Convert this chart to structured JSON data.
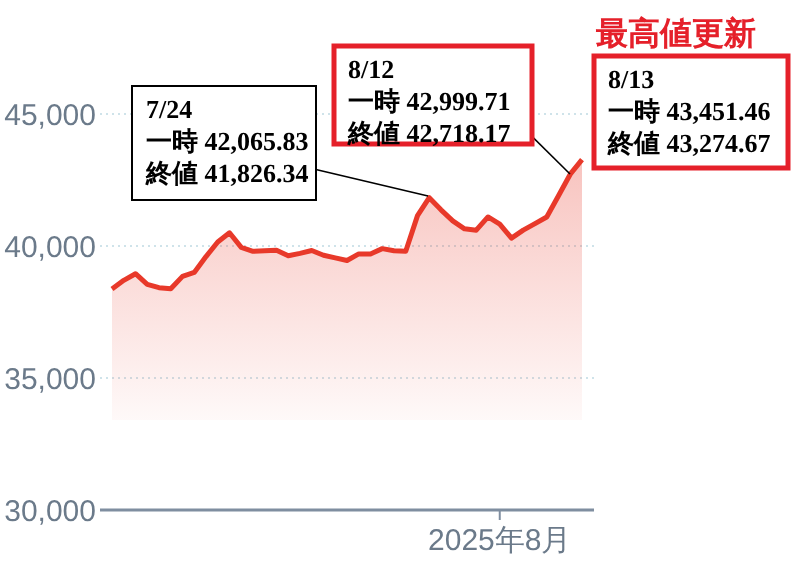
{
  "chart_data": {
    "type": "area",
    "categories": [
      null,
      null,
      null,
      null,
      null,
      null,
      null,
      null,
      null,
      null,
      null,
      null,
      null,
      null,
      null,
      null,
      null,
      null,
      null,
      null,
      null,
      null,
      null,
      null,
      null,
      null,
      null,
      null,
      null,
      null,
      null,
      null,
      null,
      "2025年8月",
      null,
      null,
      null,
      null,
      null,
      null,
      null
    ],
    "series": [
      {
        "color": "#e8392a",
        "values": [
          38370,
          38700,
          38950,
          38550,
          38420,
          38380,
          38850,
          39000,
          39600,
          40150,
          40500,
          39950,
          39800,
          39820,
          39840,
          39630,
          39720,
          39830,
          39650,
          39550,
          39450,
          39700,
          39700,
          39900,
          39820,
          39800,
          41150,
          41830,
          41370,
          40950,
          40650,
          40600,
          41100,
          40830,
          40300,
          40600,
          40850,
          41100,
          41900,
          42720,
          43270
        ]
      }
    ],
    "ylim": [
      30000,
      45000
    ],
    "yticks": [
      {
        "value": 30000,
        "label": "30,000"
      },
      {
        "value": 35000,
        "label": "35,000"
      },
      {
        "value": 40000,
        "label": "40,000"
      },
      {
        "value": 45000,
        "label": "45,000"
      }
    ],
    "grid": "y",
    "annotations": [
      "7/24\n一時 42,065.83\n終値 41,826.34",
      "8/12\n一時 42,999.71\n終値 42,718.17",
      "8/13\n一時 43,451.46\n終値 43,274.67",
      "最高値更新"
    ]
  }
}
